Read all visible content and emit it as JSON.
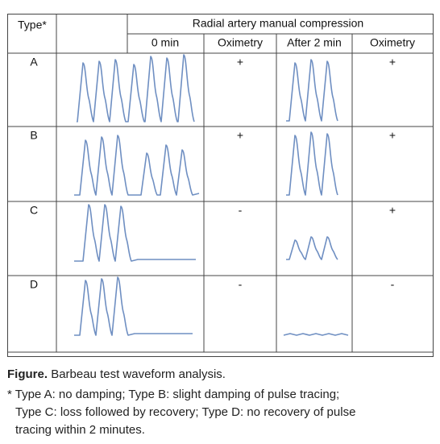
{
  "table": {
    "header": {
      "type": "Type*",
      "group": "Radial artery manual compression",
      "columns": [
        "0 min",
        "Oximetry",
        "After 2 min",
        "Oximetry"
      ]
    },
    "rows": [
      {
        "type": "A",
        "oximetry_0": "+",
        "oximetry_2": "+"
      },
      {
        "type": "B",
        "oximetry_0": "+",
        "oximetry_2": "+"
      },
      {
        "type": "C",
        "oximetry_0": "-",
        "oximetry_2": "+"
      },
      {
        "type": "D",
        "oximetry_0": "-",
        "oximetry_2": "-"
      }
    ]
  },
  "caption": {
    "label": "Figure.",
    "title": "Barbeau test waveform analysis."
  },
  "footnote": [
    "* Type A: no damping; Type B: slight damping of pulse tracing;",
    "Type C: loss followed by recovery; Type D: no recovery of pulse",
    "tracing within 2 minutes."
  ]
}
